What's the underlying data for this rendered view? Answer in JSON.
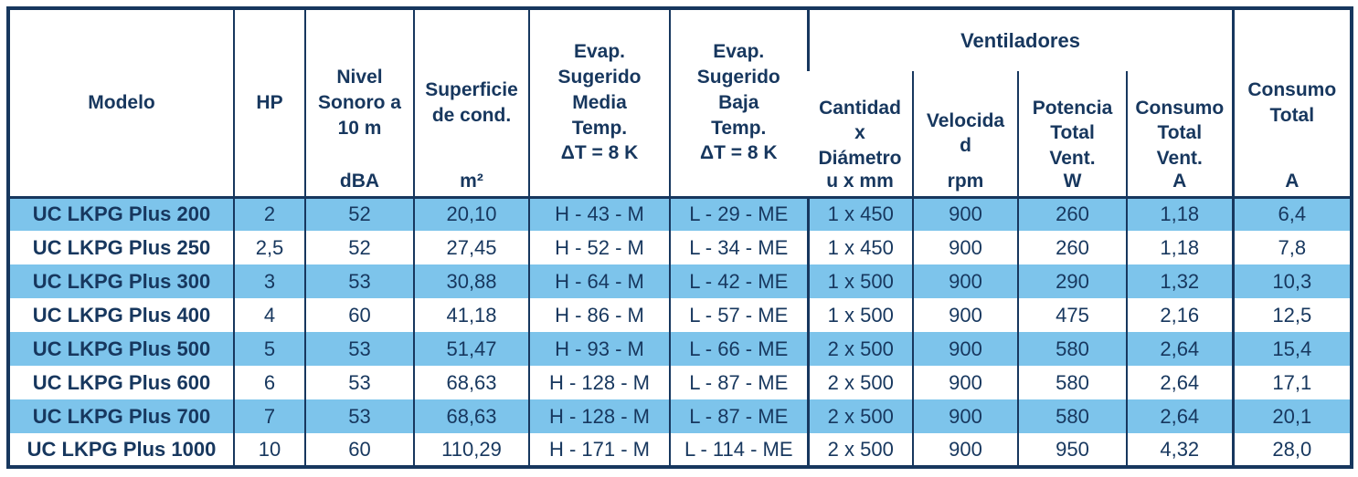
{
  "table": {
    "header": {
      "modelo": {
        "title": "Modelo",
        "unit": ""
      },
      "hp": {
        "title": "HP",
        "unit": ""
      },
      "nivel_sonoro": {
        "title": "Nivel\nSonoro a\n10 m",
        "unit": "dBA"
      },
      "superficie": {
        "title": "Superficie\nde cond.",
        "unit": "m²"
      },
      "evap_media": {
        "title": "Evap.\nSugerido\nMedia\nTemp.\nΔT = 8 K",
        "unit": ""
      },
      "evap_baja": {
        "title": "Evap.\nSugerido\nBaja\nTemp.\nΔT = 8 K",
        "unit": ""
      },
      "ventiladores_group": {
        "title": "Ventiladores"
      },
      "cantidad": {
        "title": "Cantidad\nx\nDiámetro",
        "unit": "u x mm"
      },
      "velocidad": {
        "title": "Velocida\nd",
        "unit": "rpm"
      },
      "potencia": {
        "title": "Potencia\nTotal\nVent.",
        "unit": "W"
      },
      "consumo_vent": {
        "title": "Consumo\nTotal\nVent.",
        "unit": "A"
      },
      "consumo_total": {
        "title": "Consumo\nTotal",
        "unit": "A"
      }
    },
    "column_ids": [
      "modelo",
      "hp",
      "nivel-sonoro",
      "superficie",
      "evap-media",
      "evap-baja",
      "cantidad-diametro",
      "velocidad",
      "potencia-vent",
      "consumo-vent",
      "consumo-total"
    ],
    "rows": [
      [
        "UC LKPG Plus 200",
        "2",
        "52",
        "20,10",
        "H - 43 - M",
        "L - 29 - ME",
        "1 x 450",
        "900",
        "260",
        "1,18",
        "6,4"
      ],
      [
        "UC LKPG Plus 250",
        "2,5",
        "52",
        "27,45",
        "H - 52 - M",
        "L - 34 - ME",
        "1 x 450",
        "900",
        "260",
        "1,18",
        "7,8"
      ],
      [
        "UC LKPG Plus 300",
        "3",
        "53",
        "30,88",
        "H - 64 - M",
        "L - 42 - ME",
        "1 x 500",
        "900",
        "290",
        "1,32",
        "10,3"
      ],
      [
        "UC LKPG Plus 400",
        "4",
        "60",
        "41,18",
        "H - 86 - M",
        "L - 57 - ME",
        "1 x 500",
        "900",
        "475",
        "2,16",
        "12,5"
      ],
      [
        "UC LKPG Plus 500",
        "5",
        "53",
        "51,47",
        "H - 93 - M",
        "L - 66 - ME",
        "2 x 500",
        "900",
        "580",
        "2,64",
        "15,4"
      ],
      [
        "UC LKPG Plus 600",
        "6",
        "53",
        "68,63",
        "H - 128 - M",
        "L - 87 - ME",
        "2 x 500",
        "900",
        "580",
        "2,64",
        "17,1"
      ],
      [
        "UC LKPG Plus 700",
        "7",
        "53",
        "68,63",
        "H - 128 - M",
        "L - 87 - ME",
        "2 x 500",
        "900",
        "580",
        "2,64",
        "20,1"
      ],
      [
        "UC LKPG Plus 1000",
        "10",
        "60",
        "110,29",
        "H - 171 - M",
        "L - 114 - ME",
        "2 x 500",
        "900",
        "950",
        "4,32",
        "28,0"
      ]
    ],
    "blue_row_indices": [
      0,
      2,
      4,
      6
    ]
  },
  "colors": {
    "row_highlight": "#7DC4EB",
    "text_navy": "#17375E",
    "border_navy": "#17375E",
    "background": "#FFFFFF"
  }
}
